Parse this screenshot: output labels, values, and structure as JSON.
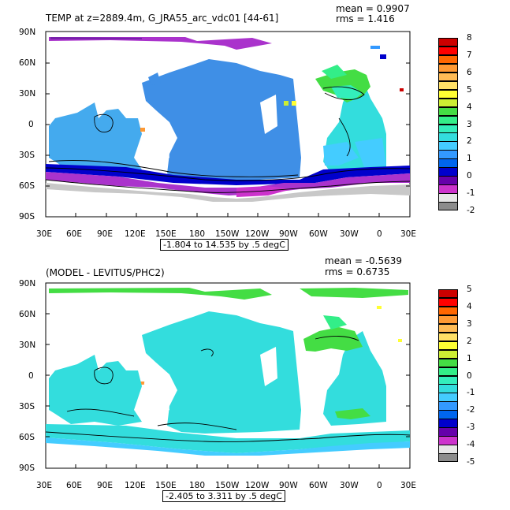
{
  "panels": [
    {
      "title": "TEMP at z=2889.4m, G_JRA55_arc_vdc01 [44-61]",
      "mean_label": "mean = 0.9907",
      "rms_label": "rms = 1.416",
      "range_label": "-1.804 to 14.535 by .5 degC",
      "lat_labels": [
        "90N",
        "60N",
        "30N",
        "0",
        "30S",
        "60S",
        "90S"
      ],
      "lon_labels": [
        "30E",
        "60E",
        "90E",
        "120E",
        "150E",
        "180",
        "150W",
        "120W",
        "90W",
        "60W",
        "30W",
        "0",
        "30E"
      ],
      "colorbar": {
        "labels": [
          "8",
          "7",
          "6",
          "5",
          "4",
          "3",
          "2",
          "1",
          "0",
          "-1",
          "-2"
        ],
        "colors": [
          "#cc0000",
          "#ff0000",
          "#ff6600",
          "#ff9933",
          "#ffbb55",
          "#ffe066",
          "#ffff33",
          "#ccee33",
          "#44dd44",
          "#33ee88",
          "#33eebb",
          "#33dddd",
          "#44ccff",
          "#3399ff",
          "#0066ee",
          "#0000cc",
          "#6600aa",
          "#cc33cc",
          "#e6e6e6",
          "#8c8c8c"
        ]
      }
    },
    {
      "title": "(MODEL - LEVITUS/PHC2)",
      "mean_label": "mean = -0.5639",
      "rms_label": "rms = 0.6735",
      "range_label": "-2.405 to 3.311 by .5 degC",
      "lat_labels": [
        "90N",
        "60N",
        "30N",
        "0",
        "30S",
        "60S",
        "90S"
      ],
      "lon_labels": [
        "30E",
        "60E",
        "90E",
        "120E",
        "150E",
        "180",
        "150W",
        "120W",
        "90W",
        "60W",
        "30W",
        "0",
        "30E"
      ],
      "colorbar": {
        "labels": [
          "5",
          "4",
          "3",
          "2",
          "1",
          "0",
          "-1",
          "-2",
          "-3",
          "-4",
          "-5"
        ],
        "colors": [
          "#cc0000",
          "#ff0000",
          "#ff6600",
          "#ff9933",
          "#ffbb55",
          "#ffe066",
          "#ffff33",
          "#ccee33",
          "#44dd44",
          "#33ee88",
          "#33eebb",
          "#33dddd",
          "#44ccff",
          "#3399ff",
          "#0066ee",
          "#0000cc",
          "#6600aa",
          "#cc33cc",
          "#e6e6e6",
          "#8c8c8c"
        ]
      }
    }
  ]
}
